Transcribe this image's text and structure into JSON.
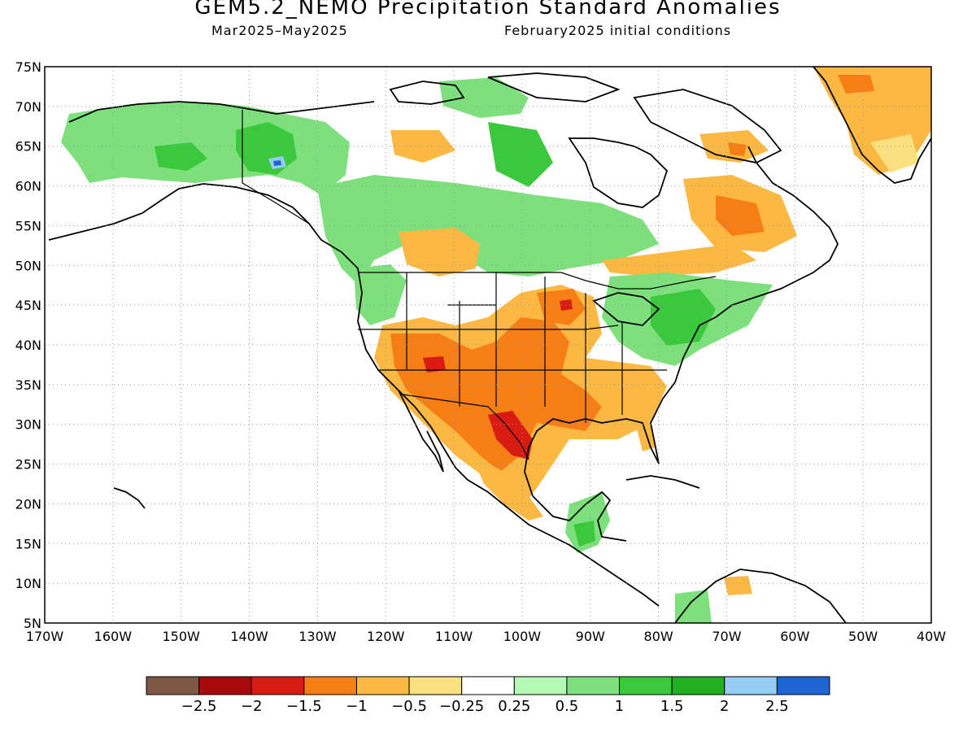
{
  "title": "GEM5.2_NEMO Precipitation Standard Anomalies",
  "subtitle_left": "Mar2025–May2025",
  "subtitle_right": "February2025 initial conditions",
  "map": {
    "lat_labels": [
      "75N",
      "70N",
      "65N",
      "60N",
      "55N",
      "50N",
      "45N",
      "40N",
      "35N",
      "30N",
      "25N",
      "20N",
      "15N",
      "10N",
      "5N"
    ],
    "lon_labels": [
      "170W",
      "160W",
      "150W",
      "140W",
      "130W",
      "120W",
      "110W",
      "100W",
      "90W",
      "80W",
      "70W",
      "60W",
      "50W",
      "40W"
    ],
    "lon_range": [
      -170,
      -40
    ],
    "lat_range": [
      5,
      75
    ],
    "grid": "dotted",
    "fields": [
      {
        "region": "alaska-yukon",
        "category": "0.5 to 1",
        "color": "#7de07d"
      },
      {
        "region": "yukon-core",
        "category": "1 to 1.5",
        "color": "#3cc83c"
      },
      {
        "region": "yukon-peak",
        "category": "2.5+",
        "color": "#1e64d2"
      },
      {
        "region": "southwest-us",
        "category": "-1.5 to -1",
        "color": "#f77e15"
      },
      {
        "region": "texas-coast",
        "category": "-2 to -1.5",
        "color": "#d81c14"
      },
      {
        "region": "great-lakes-northeast",
        "category": "1 to 1.5",
        "color": "#3cc83c"
      },
      {
        "region": "greenland-east",
        "category": "-1 to -0.5",
        "color": "#fbb944"
      },
      {
        "region": "labrador",
        "category": "-1.5 to -1",
        "color": "#f77e15"
      }
    ]
  },
  "colorbar": {
    "colors": [
      "#7e5745",
      "#a60a0a",
      "#d81c14",
      "#f77e15",
      "#fbb944",
      "#fbe07f",
      "#ffffff",
      "#b4fab4",
      "#7de07d",
      "#3cc83c",
      "#22b022",
      "#96cdf4",
      "#1e64d2"
    ],
    "labels": [
      "−2.5",
      "−2",
      "−1.5",
      "−1",
      "−0.5",
      "−0.25",
      "0.25",
      "0.5",
      "1",
      "1.5",
      "2",
      "2.5"
    ]
  }
}
